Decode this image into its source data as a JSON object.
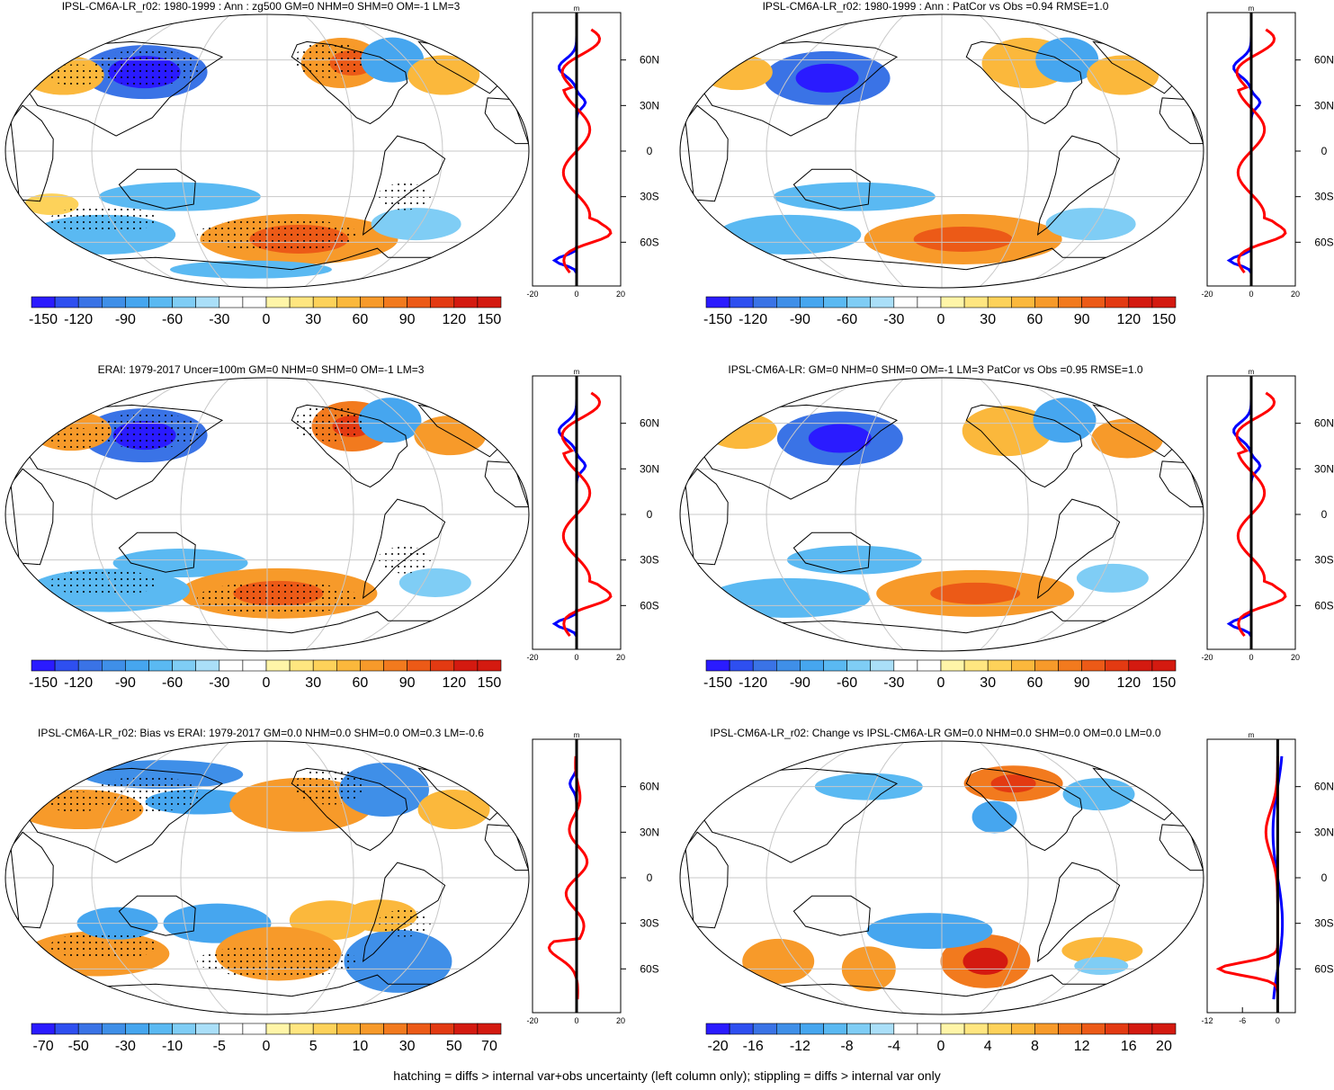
{
  "footnote": "hatching = diffs > internal var+obs uncertainty (left column only); stippling = diffs > internal var only",
  "colors": {
    "neg": [
      "#2a1bff",
      "#2e4ff0",
      "#3a73e6",
      "#3f8fe8",
      "#46a6ef",
      "#5ab9f2",
      "#7fcdf5",
      "#aadff8"
    ],
    "pos": [
      "#fff5a8",
      "#ffe680",
      "#fdd25a",
      "#fbb83c",
      "#f79a2a",
      "#f27a1e",
      "#ec5a17",
      "#e33a12",
      "#d41a10"
    ],
    "neutral": "#ffffff",
    "zonal_model": "#ff0000",
    "zonal_obs": "#0000ff",
    "zonal_ref": "#000000"
  },
  "zonal": {
    "unit": "m",
    "lat_labels": [
      "60N",
      "30N",
      "0",
      "30S",
      "60S"
    ]
  },
  "panels": [
    {
      "title": "IPSL-CM6A-LR_r02: 1980-1999 : Ann : zg500 GM=0 NHM=0 SHM=0 OM=-1 LM=3",
      "colorbar": [
        "-150",
        "-120",
        "-90",
        "-60",
        "-30",
        "0",
        "30",
        "60",
        "90",
        "120",
        "150"
      ],
      "zonal_ticks": [
        "-20",
        "0",
        "20"
      ],
      "stipple": true
    },
    {
      "title": "IPSL-CM6A-LR_r02: 1980-1999 : Ann : PatCor vs Obs =0.94 RMSE=1.0",
      "colorbar": [
        "-150",
        "-120",
        "-90",
        "-60",
        "-30",
        "0",
        "30",
        "60",
        "90",
        "120",
        "150"
      ],
      "zonal_ticks": [
        "-20",
        "0",
        "20"
      ],
      "stipple": false
    },
    {
      "title": "ERAI: 1979-2017 Uncer=100m GM=0 NHM=0 SHM=0 OM=-1 LM=3",
      "colorbar": [
        "-150",
        "-120",
        "-90",
        "-60",
        "-30",
        "0",
        "30",
        "60",
        "90",
        "120",
        "150"
      ],
      "zonal_ticks": [
        "-20",
        "0",
        "20"
      ],
      "stipple": true
    },
    {
      "title": "IPSL-CM6A-LR: GM=0 NHM=0 SHM=0 OM=-1 LM=3 PatCor vs Obs =0.95 RMSE=1.0",
      "colorbar": [
        "-150",
        "-120",
        "-90",
        "-60",
        "-30",
        "0",
        "30",
        "60",
        "90",
        "120",
        "150"
      ],
      "zonal_ticks": [
        "-20",
        "0",
        "20"
      ],
      "stipple": false
    },
    {
      "title": "IPSL-CM6A-LR_r02: Bias vs ERAI: 1979-2017 GM=0.0 NHM=0.0 SHM=0.0 OM=0.3 LM=-0.6",
      "colorbar": [
        "-70",
        "-50",
        "-30",
        "-10",
        "-5",
        "0",
        "5",
        "10",
        "30",
        "50",
        "70"
      ],
      "zonal_ticks": [
        "-20",
        "0",
        "20"
      ],
      "stipple": true
    },
    {
      "title": "IPSL-CM6A-LR_r02: Change vs IPSL-CM6A-LR GM=0.0 NHM=0.0 SHM=0.0 OM=0.0 LM=0.0",
      "colorbar": [
        "-20",
        "-16",
        "-12",
        "-8",
        "-4",
        "0",
        "4",
        "8",
        "12",
        "16",
        "20"
      ],
      "zonal_ticks": [
        "-12",
        "-6",
        "0"
      ],
      "stipple": false
    }
  ]
}
